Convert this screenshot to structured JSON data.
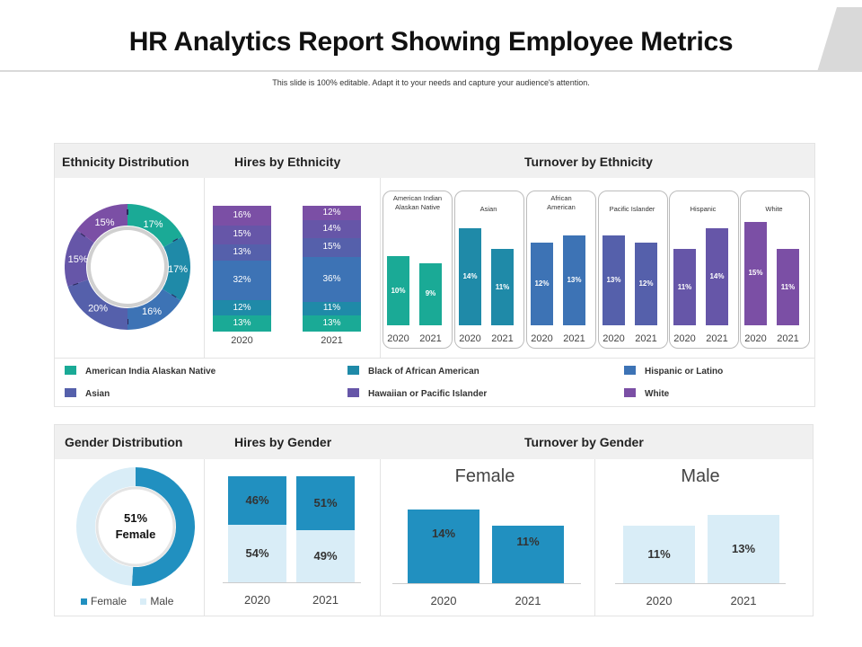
{
  "title": "HR Analytics Report Showing Employee Metrics",
  "subtitle": "This slide is 100% editable. Adapt it to your needs and capture your audience's attention.",
  "colors": {
    "american_indian": "#1aaa96",
    "black": "#1f8aa8",
    "hispanic": "#3d73b5",
    "asian": "#5560ab",
    "hawaiian": "#6656a8",
    "white": "#7b4fa5",
    "female": "#2190c0",
    "male": "#d9edf7"
  },
  "ethnicity_panel": {
    "headers": {
      "distribution": "Ethnicity Distribution",
      "hires": "Hires by Ethnicity",
      "turnover": "Turnover by Ethnicity"
    },
    "legend": [
      {
        "label": "American India Alaskan Native",
        "color": "#1aaa96"
      },
      {
        "label": "Black of African American",
        "color": "#1f8aa8"
      },
      {
        "label": "Hispanic or Latino",
        "color": "#3d73b5"
      },
      {
        "label": "Asian",
        "color": "#5560ab"
      },
      {
        "label": "Hawaiian or Pacific Islander",
        "color": "#6656a8"
      },
      {
        "label": "White",
        "color": "#7b4fa5"
      }
    ]
  },
  "gender_panel": {
    "headers": {
      "distribution": "Gender Distribution",
      "hires": "Hires by Gender",
      "turnover": "Turnover by Gender"
    },
    "donut_center_value": "51%",
    "donut_center_label": "Female",
    "legend": [
      {
        "label": "Female",
        "color": "#2190c0"
      },
      {
        "label": "Male",
        "color": "#d9edf7"
      }
    ],
    "turnover_female_title": "Female",
    "turnover_male_title": "Male"
  },
  "chart_data": [
    {
      "id": "ethnicity-distribution",
      "type": "pie",
      "title": "Ethnicity Distribution",
      "categories": [
        "American India Alaskan Native",
        "Black of African American",
        "Hispanic or Latino",
        "Asian",
        "Hawaiian or Pacific Islander",
        "White"
      ],
      "values": [
        17,
        17,
        16,
        20,
        15,
        15
      ],
      "labels": [
        "17%",
        "17%",
        "16%",
        "20%",
        "15%",
        "15%"
      ]
    },
    {
      "id": "hires-by-ethnicity",
      "type": "bar",
      "stacked": true,
      "title": "Hires by Ethnicity",
      "categories": [
        "2020",
        "2021"
      ],
      "series": [
        {
          "name": "American India Alaskan Native",
          "values": [
            13,
            13
          ],
          "labels": [
            "13%",
            "13%"
          ]
        },
        {
          "name": "Black of African American",
          "values": [
            12,
            11
          ],
          "labels": [
            "12%",
            "11%"
          ]
        },
        {
          "name": "Hispanic or Latino",
          "values": [
            32,
            36
          ],
          "labels": [
            "32%",
            "36%"
          ]
        },
        {
          "name": "Asian",
          "values": [
            13,
            15
          ],
          "labels": [
            "13%",
            "15%"
          ]
        },
        {
          "name": "Hawaiian or Pacific Islander",
          "values": [
            15,
            14
          ],
          "labels": [
            "15%",
            "14%"
          ]
        },
        {
          "name": "White",
          "values": [
            16,
            12
          ],
          "labels": [
            "16%",
            "12%"
          ]
        }
      ]
    },
    {
      "id": "turnover-by-ethnicity",
      "type": "bar",
      "title": "Turnover by Ethnicity",
      "categories": [
        "2020",
        "2021"
      ],
      "ylim": [
        0,
        15
      ],
      "groups": [
        {
          "name": "American Indian Alaskan Native",
          "values": [
            10,
            9
          ],
          "labels": [
            "10%",
            "9%"
          ]
        },
        {
          "name": "Asian",
          "values": [
            14,
            11
          ],
          "labels": [
            "14%",
            "11%"
          ]
        },
        {
          "name": "African American",
          "values": [
            12,
            13
          ],
          "labels": [
            "12%",
            "13%"
          ]
        },
        {
          "name": "Pacific Islander",
          "values": [
            13,
            12
          ],
          "labels": [
            "13%",
            "12%"
          ]
        },
        {
          "name": "Hispanic",
          "values": [
            11,
            14
          ],
          "labels": [
            "11%",
            "14%"
          ]
        },
        {
          "name": "White",
          "values": [
            15,
            11
          ],
          "labels": [
            "15%",
            "11%"
          ]
        }
      ]
    },
    {
      "id": "gender-distribution",
      "type": "pie",
      "title": "Gender Distribution",
      "categories": [
        "Female",
        "Male"
      ],
      "values": [
        51,
        49
      ]
    },
    {
      "id": "hires-by-gender",
      "type": "bar",
      "stacked": true,
      "title": "Hires by Gender",
      "categories": [
        "2020",
        "2021"
      ],
      "series": [
        {
          "name": "Male",
          "values": [
            54,
            49
          ],
          "labels": [
            "54%",
            "49%"
          ]
        },
        {
          "name": "Female",
          "values": [
            46,
            51
          ],
          "labels": [
            "46%",
            "51%"
          ]
        }
      ]
    },
    {
      "id": "turnover-by-gender",
      "type": "bar",
      "title": "Turnover by Gender",
      "categories": [
        "2020",
        "2021"
      ],
      "groups": [
        {
          "name": "Female",
          "values": [
            14,
            11
          ],
          "labels": [
            "14%",
            "11%"
          ]
        },
        {
          "name": "Male",
          "values": [
            11,
            13
          ],
          "labels": [
            "11%",
            "13%"
          ]
        }
      ]
    }
  ]
}
